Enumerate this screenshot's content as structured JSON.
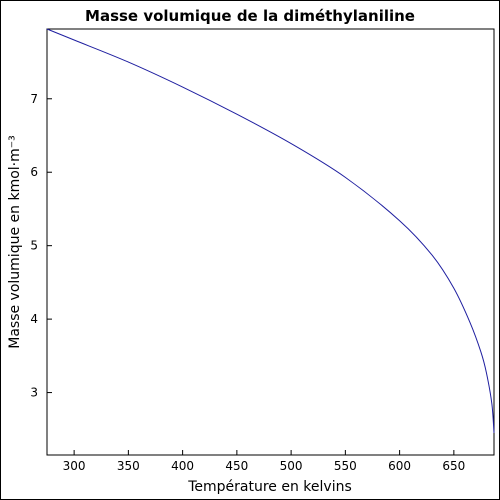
{
  "chart_data": {
    "type": "line",
    "title": "Masse volumique de la diméthylaniline",
    "xlabel": "Température en kelvins",
    "ylabel": "Masse volumique en kmol·m⁻³",
    "xlim": [
      275,
      687
    ],
    "ylim": [
      2.15,
      7.95
    ],
    "xticks": [
      300,
      350,
      400,
      450,
      500,
      550,
      600,
      650
    ],
    "yticks": [
      3,
      4,
      5,
      6,
      7
    ],
    "grid": false,
    "line_color": "#1f1fa0",
    "series": [
      {
        "x": [
          275,
          300,
          350,
          400,
          450,
          500,
          550,
          600,
          630,
          650,
          665,
          675,
          680,
          685,
          687
        ],
        "values": [
          7.95,
          7.8,
          7.5,
          7.16,
          6.79,
          6.39,
          5.93,
          5.34,
          4.87,
          4.42,
          3.95,
          3.55,
          3.27,
          2.85,
          2.45
        ]
      }
    ]
  }
}
